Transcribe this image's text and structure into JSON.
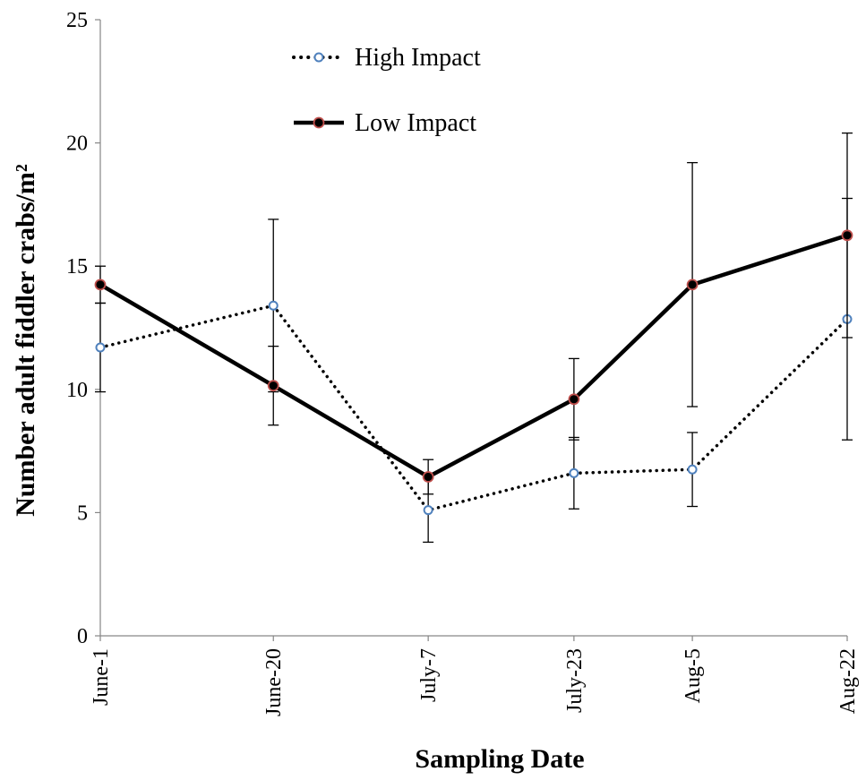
{
  "chart_data": {
    "type": "line",
    "title": "",
    "xlabel": "Sampling Date",
    "ylabel": "Number adult fiddler crabs/m²",
    "ylim": [
      0,
      25
    ],
    "yticks": [
      0,
      5,
      10,
      15,
      20,
      25
    ],
    "x": [
      "June-1",
      "June-20",
      "July-7",
      "July-23",
      "Aug-5",
      "Aug-22"
    ],
    "x_days": [
      1,
      20,
      37,
      53,
      66,
      83
    ],
    "grid": false,
    "legend_position": "top-center",
    "series": [
      {
        "name": "High Impact",
        "style": "dotted",
        "color": "#000000",
        "marker_fill": "#ffffff",
        "marker_edge": "#4f81bd",
        "values": [
          11.7,
          13.4,
          5.1,
          6.6,
          6.75,
          12.85
        ],
        "error": [
          1.8,
          3.5,
          1.3,
          1.45,
          1.5,
          4.9
        ]
      },
      {
        "name": "Low Impact",
        "style": "solid",
        "color": "#000000",
        "marker_fill": "#000000",
        "marker_edge": "#c0504d",
        "values": [
          14.25,
          10.15,
          6.45,
          9.6,
          14.25,
          16.25
        ],
        "error": [
          0.75,
          1.6,
          0.7,
          1.65,
          4.95,
          4.15
        ]
      }
    ]
  }
}
